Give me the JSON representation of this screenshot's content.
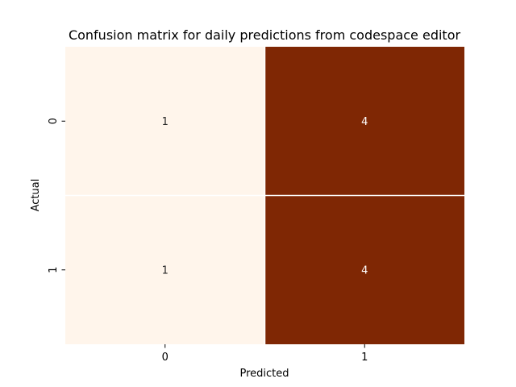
{
  "chart_data": {
    "type": "heatmap",
    "title": "Confusion matrix for daily predictions from codespace editor",
    "xlabel": "Predicted",
    "ylabel": "Actual",
    "x_categories": [
      "0",
      "1"
    ],
    "y_categories": [
      "0",
      "1"
    ],
    "values": [
      [
        1,
        4
      ],
      [
        1,
        4
      ]
    ],
    "colorscale": {
      "low": "#fff5eb",
      "high": "#7f2704"
    },
    "annotation_colors": {
      "on_light": "#262626",
      "on_dark": "#ffffff"
    },
    "cell_separator_color": "#ffffff",
    "colorbar": false
  }
}
